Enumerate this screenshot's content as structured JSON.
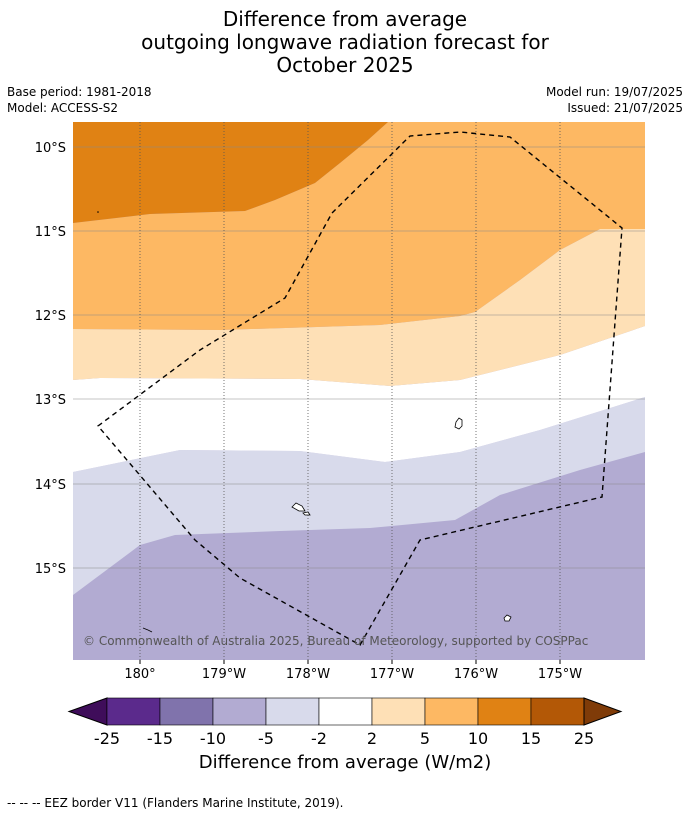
{
  "title": [
    "Difference from average",
    "outgoing longwave radiation forecast for",
    "October 2025"
  ],
  "base_period": "Base period: 1981-2018",
  "model": "Model: ACCESS-S2",
  "model_run": "Model run: 19/07/2025",
  "issued": "Issued: 21/07/2025",
  "copyright": "© Commonwealth of Australia 2025, Bureau of Meteorology, supported by COSPPac",
  "lat_labels": [
    "10°S",
    "11°S",
    "12°S",
    "13°S",
    "14°S",
    "15°S"
  ],
  "lon_labels": [
    "180°",
    "179°W",
    "178°W",
    "177°W",
    "176°W",
    "175°W"
  ],
  "colorbar": {
    "ticks": [
      "-25",
      "-15",
      "-10",
      "-5",
      "-2",
      "2",
      "5",
      "10",
      "15",
      "25"
    ],
    "colors": [
      "#3f0d5a",
      "#5b2a8c",
      "#8073ac",
      "#b2abd2",
      "#d8daeb",
      "#ffffff",
      "#fee0b6",
      "#fdb863",
      "#e08214",
      "#b35806",
      "#7f3b08"
    ],
    "label": "Difference from average (W/m2)"
  },
  "footnote": "--  --  -- EEZ border V11 (Flanders Marine Institute, 2019)."
}
